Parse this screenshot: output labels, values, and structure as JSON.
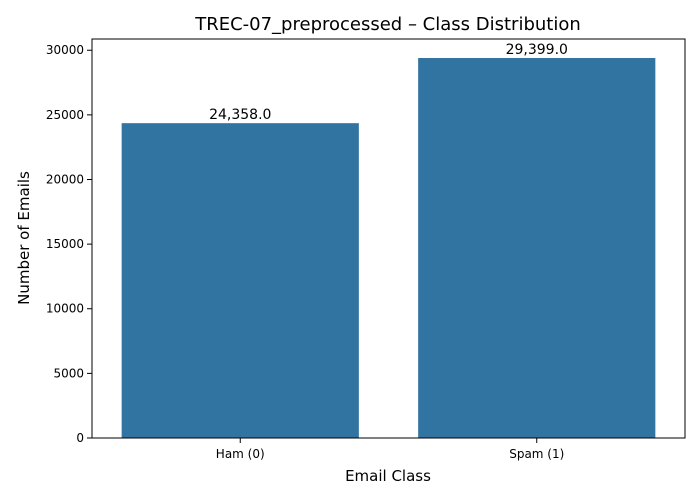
{
  "chart_data": {
    "type": "bar",
    "title": "TREC-07_preprocessed – Class Distribution",
    "xlabel": "Email Class",
    "ylabel": "Number of Emails",
    "categories": [
      "Ham (0)",
      "Spam (1)"
    ],
    "values": [
      24358,
      29399
    ],
    "data_labels": [
      "24,358.0",
      "29,399.0"
    ],
    "yticks": [
      0,
      5000,
      10000,
      15000,
      20000,
      25000,
      30000
    ],
    "ylim": [
      0,
      30870
    ],
    "grid": false,
    "legend": "none",
    "bar_color": "#3274a1"
  }
}
